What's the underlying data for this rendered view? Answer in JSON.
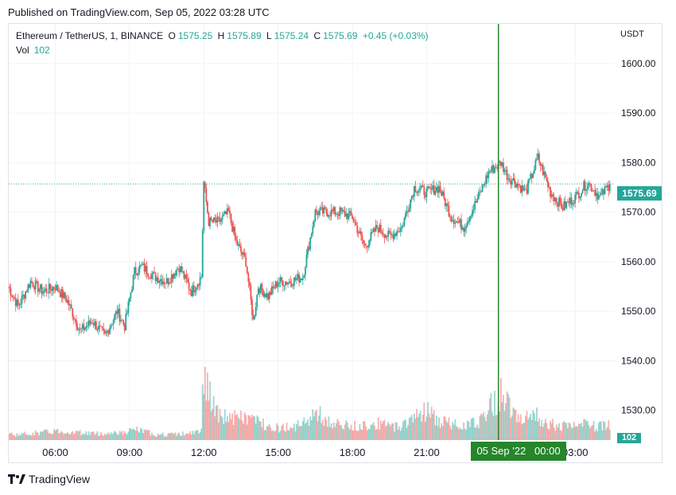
{
  "published": "Published on TradingView.com, Sep 05, 2022 03:28 UTC",
  "legend": {
    "symbol": "Ethereum / TetherUS, 1, BINANCE",
    "o_label": "O",
    "o_value": "1575.25",
    "h_label": "H",
    "h_value": "1575.89",
    "l_label": "L",
    "l_value": "1575.24",
    "c_label": "C",
    "c_value": "1575.69",
    "change": "+0.45 (+0.03%)",
    "vol_label": "Vol",
    "vol_value": "102"
  },
  "axis_unit": "USDT",
  "price_badge": "1575.69",
  "vol_badge": "102",
  "time_badge": "05 Sep '22   00:00",
  "footer_brand": "TradingView",
  "colors": {
    "up": "#26a69a",
    "down": "#ef5350",
    "crosshair": "#26862b",
    "grid": "#f0f3fa"
  },
  "chart_data": {
    "type": "candlestick",
    "ylim": [
      1524,
      1608
    ],
    "y_ticks": [
      1530.0,
      1540.0,
      1550.0,
      1560.0,
      1570.0,
      1580.0,
      1590.0,
      1600.0
    ],
    "x_ticks": [
      "06:00",
      "09:00",
      "12:00",
      "15:00",
      "18:00",
      "21:00",
      "00:00",
      "03:00"
    ],
    "x_tick_hours": [
      6,
      9,
      12,
      15,
      18,
      21,
      24,
      27
    ],
    "xlim_hours": [
      4.12,
      28.6
    ],
    "last_price": 1575.69,
    "crosshair_hour": 23.9,
    "series": {
      "hours": [
        4.1,
        4.5,
        5.0,
        5.5,
        6.0,
        6.5,
        7.0,
        7.5,
        8.0,
        8.5,
        8.8,
        9.2,
        9.5,
        10.0,
        10.5,
        11.0,
        11.5,
        11.9,
        12.0,
        12.2,
        12.6,
        13.0,
        13.3,
        13.7,
        14.0,
        14.2,
        14.6,
        15.0,
        15.5,
        16.0,
        16.5,
        17.0,
        17.5,
        18.0,
        18.5,
        19.0,
        19.5,
        20.0,
        20.5,
        21.0,
        21.5,
        22.0,
        22.5,
        23.0,
        23.5,
        24.0,
        24.3,
        24.6,
        25.0,
        25.5,
        26.0,
        26.5,
        27.0,
        27.5,
        28.0,
        28.4
      ],
      "close": [
        1555,
        1551,
        1556,
        1554,
        1555,
        1552,
        1546,
        1548,
        1545,
        1550,
        1547,
        1558,
        1559,
        1557,
        1556,
        1559,
        1554,
        1557,
        1576,
        1568,
        1568,
        1570,
        1564,
        1560,
        1548,
        1555,
        1553,
        1556,
        1556,
        1557,
        1570,
        1570,
        1570,
        1569,
        1563,
        1567,
        1565,
        1567,
        1575,
        1574,
        1575,
        1569,
        1567,
        1572,
        1578,
        1580,
        1577,
        1576,
        1574,
        1581,
        1574,
        1571,
        1573,
        1576,
        1573,
        1575.69
      ],
      "volume": [
        40,
        35,
        45,
        50,
        60,
        55,
        50,
        45,
        40,
        55,
        45,
        70,
        60,
        40,
        35,
        40,
        45,
        60,
        500,
        300,
        150,
        160,
        140,
        150,
        140,
        120,
        100,
        80,
        90,
        100,
        190,
        120,
        100,
        90,
        100,
        110,
        90,
        95,
        160,
        200,
        120,
        110,
        105,
        110,
        210,
        300,
        250,
        200,
        140,
        160,
        110,
        90,
        100,
        100,
        90,
        102
      ]
    }
  }
}
